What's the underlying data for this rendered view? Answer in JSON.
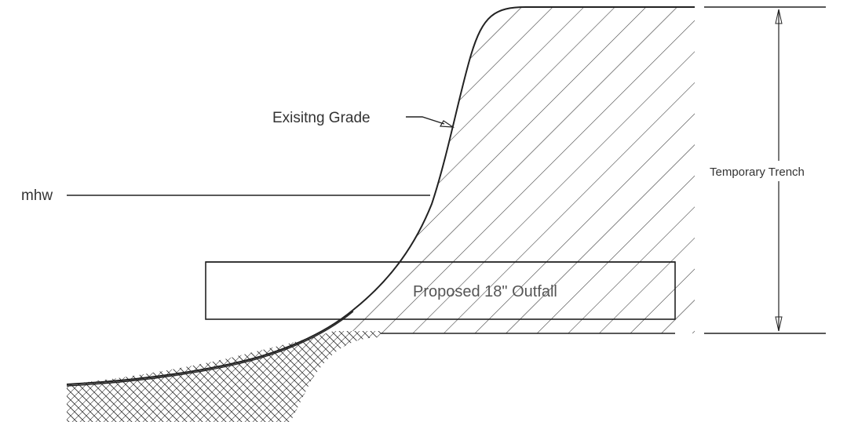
{
  "labels": {
    "existing_grade": "Exisitng Grade",
    "mhw": "mhw",
    "temporary_trench": "Temporary Trench",
    "outfall": "Proposed 18\" Outfall"
  },
  "colors": {
    "line": "#222222",
    "text": "#333333",
    "background": "#ffffff"
  }
}
